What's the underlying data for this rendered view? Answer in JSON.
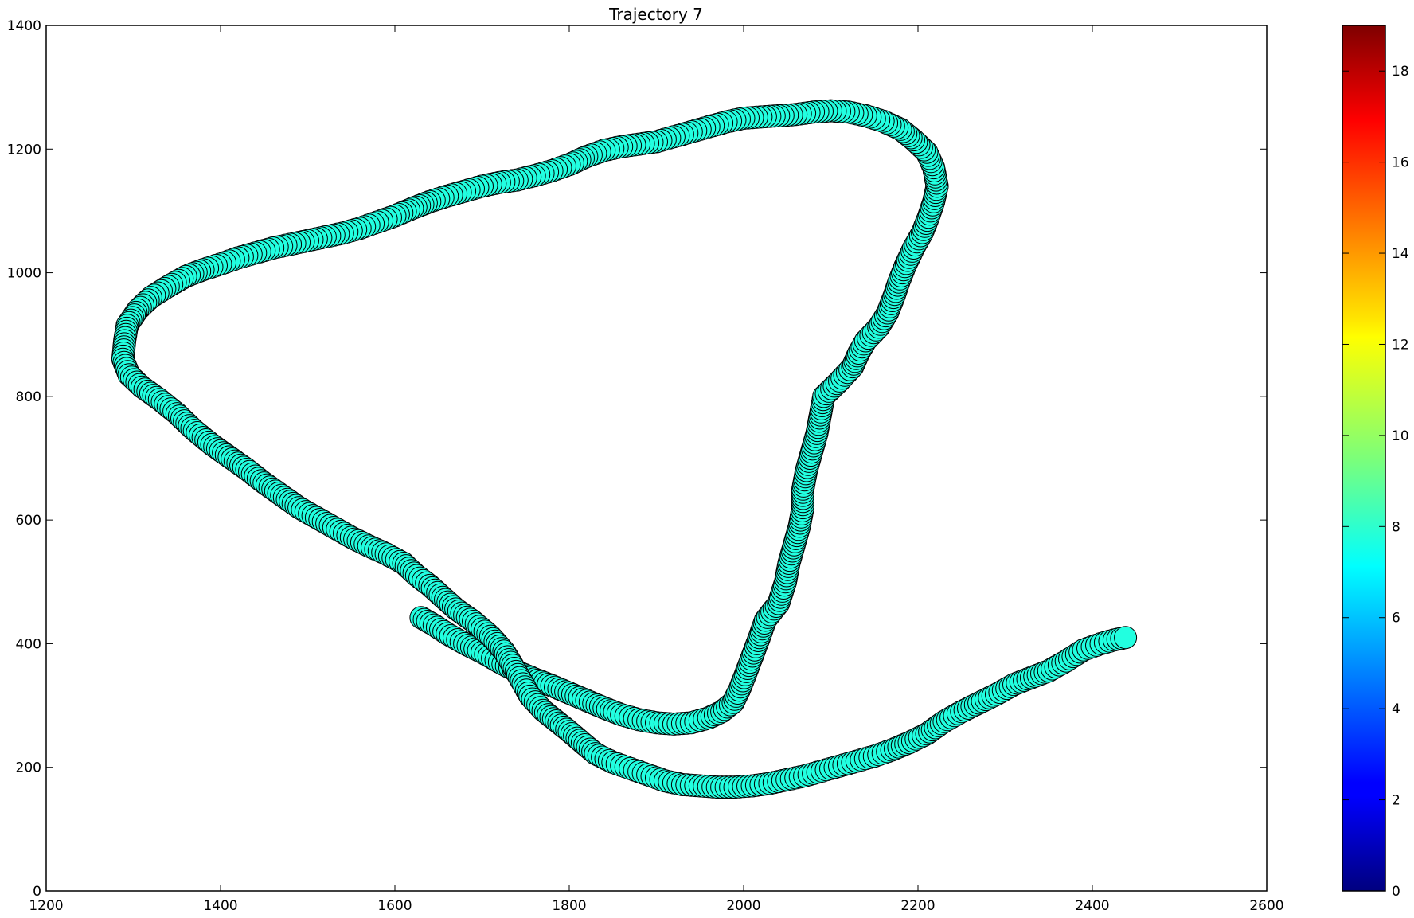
{
  "chart_data": {
    "type": "scatter",
    "title": "Trajectory 7",
    "xlabel": "",
    "ylabel": "",
    "xlim": [
      1200,
      2600
    ],
    "ylim": [
      0,
      1400
    ],
    "x_ticks": [
      1200,
      1400,
      1600,
      1800,
      2000,
      2200,
      2400,
      2600
    ],
    "y_ticks": [
      0,
      200,
      400,
      600,
      800,
      1000,
      1200,
      1400
    ],
    "grid": false,
    "marker_color": "#22ffe0",
    "marker_edge_color": "#000000",
    "colorbar": {
      "colormap": "jet",
      "range": [
        0,
        19
      ],
      "ticks": [
        0,
        2,
        4,
        6,
        8,
        10,
        12,
        14,
        16,
        18
      ]
    },
    "points": [
      [
        1630,
        442
      ],
      [
        1645,
        430
      ],
      [
        1660,
        416
      ],
      [
        1680,
        400
      ],
      [
        1700,
        386
      ],
      [
        1720,
        370
      ],
      [
        1740,
        355
      ],
      [
        1760,
        343
      ],
      [
        1780,
        332
      ],
      [
        1800,
        320
      ],
      [
        1820,
        308
      ],
      [
        1840,
        296
      ],
      [
        1860,
        285
      ],
      [
        1880,
        277
      ],
      [
        1900,
        272
      ],
      [
        1920,
        270
      ],
      [
        1940,
        272
      ],
      [
        1960,
        280
      ],
      [
        1975,
        290
      ],
      [
        1988,
        305
      ],
      [
        1995,
        325
      ],
      [
        2002,
        350
      ],
      [
        2010,
        380
      ],
      [
        2018,
        410
      ],
      [
        2025,
        438
      ],
      [
        2040,
        465
      ],
      [
        2048,
        500
      ],
      [
        2052,
        530
      ],
      [
        2058,
        560
      ],
      [
        2064,
        590
      ],
      [
        2068,
        620
      ],
      [
        2068,
        650
      ],
      [
        2072,
        680
      ],
      [
        2078,
        710
      ],
      [
        2084,
        740
      ],
      [
        2088,
        770
      ],
      [
        2092,
        800
      ],
      [
        2110,
        825
      ],
      [
        2125,
        848
      ],
      [
        2132,
        870
      ],
      [
        2140,
        890
      ],
      [
        2155,
        912
      ],
      [
        2165,
        935
      ],
      [
        2172,
        960
      ],
      [
        2178,
        985
      ],
      [
        2185,
        1010
      ],
      [
        2195,
        1040
      ],
      [
        2205,
        1065
      ],
      [
        2212,
        1090
      ],
      [
        2218,
        1115
      ],
      [
        2222,
        1140
      ],
      [
        2218,
        1170
      ],
      [
        2210,
        1195
      ],
      [
        2195,
        1215
      ],
      [
        2180,
        1232
      ],
      [
        2160,
        1245
      ],
      [
        2140,
        1254
      ],
      [
        2120,
        1260
      ],
      [
        2100,
        1262
      ],
      [
        2080,
        1260
      ],
      [
        2060,
        1256
      ],
      [
        2040,
        1254
      ],
      [
        2020,
        1252
      ],
      [
        2000,
        1250
      ],
      [
        1980,
        1244
      ],
      [
        1960,
        1236
      ],
      [
        1940,
        1228
      ],
      [
        1920,
        1220
      ],
      [
        1900,
        1212
      ],
      [
        1880,
        1208
      ],
      [
        1860,
        1204
      ],
      [
        1840,
        1198
      ],
      [
        1820,
        1188
      ],
      [
        1800,
        1175
      ],
      [
        1780,
        1165
      ],
      [
        1760,
        1157
      ],
      [
        1740,
        1150
      ],
      [
        1720,
        1146
      ],
      [
        1700,
        1140
      ],
      [
        1680,
        1132
      ],
      [
        1660,
        1124
      ],
      [
        1640,
        1115
      ],
      [
        1620,
        1104
      ],
      [
        1600,
        1092
      ],
      [
        1580,
        1082
      ],
      [
        1560,
        1072
      ],
      [
        1540,
        1064
      ],
      [
        1520,
        1058
      ],
      [
        1500,
        1052
      ],
      [
        1480,
        1046
      ],
      [
        1460,
        1040
      ],
      [
        1440,
        1032
      ],
      [
        1420,
        1024
      ],
      [
        1400,
        1014
      ],
      [
        1380,
        1005
      ],
      [
        1360,
        994
      ],
      [
        1340,
        978
      ],
      [
        1320,
        960
      ],
      [
        1305,
        940
      ],
      [
        1293,
        915
      ],
      [
        1290,
        890
      ],
      [
        1288,
        860
      ],
      [
        1295,
        835
      ],
      [
        1310,
        815
      ],
      [
        1330,
        795
      ],
      [
        1350,
        772
      ],
      [
        1370,
        745
      ],
      [
        1390,
        722
      ],
      [
        1410,
        702
      ],
      [
        1430,
        682
      ],
      [
        1450,
        660
      ],
      [
        1470,
        640
      ],
      [
        1490,
        620
      ],
      [
        1510,
        604
      ],
      [
        1530,
        588
      ],
      [
        1550,
        572
      ],
      [
        1570,
        558
      ],
      [
        1590,
        545
      ],
      [
        1610,
        530
      ],
      [
        1625,
        510
      ],
      [
        1640,
        494
      ],
      [
        1655,
        475
      ],
      [
        1670,
        456
      ],
      [
        1690,
        436
      ],
      [
        1710,
        412
      ],
      [
        1725,
        388
      ],
      [
        1735,
        365
      ],
      [
        1745,
        340
      ],
      [
        1755,
        315
      ],
      [
        1770,
        292
      ],
      [
        1785,
        275
      ],
      [
        1800,
        258
      ],
      [
        1815,
        240
      ],
      [
        1830,
        222
      ],
      [
        1850,
        208
      ],
      [
        1870,
        198
      ],
      [
        1890,
        188
      ],
      [
        1910,
        178
      ],
      [
        1930,
        172
      ],
      [
        1950,
        170
      ],
      [
        1970,
        168
      ],
      [
        1990,
        168
      ],
      [
        2010,
        170
      ],
      [
        2030,
        174
      ],
      [
        2050,
        180
      ],
      [
        2070,
        186
      ],
      [
        2090,
        194
      ],
      [
        2110,
        202
      ],
      [
        2130,
        210
      ],
      [
        2150,
        218
      ],
      [
        2170,
        228
      ],
      [
        2190,
        240
      ],
      [
        2210,
        254
      ],
      [
        2230,
        274
      ],
      [
        2250,
        290
      ],
      [
        2270,
        304
      ],
      [
        2290,
        318
      ],
      [
        2310,
        334
      ],
      [
        2330,
        345
      ],
      [
        2350,
        356
      ],
      [
        2370,
        372
      ],
      [
        2390,
        390
      ],
      [
        2410,
        400
      ],
      [
        2425,
        406
      ],
      [
        2438,
        410
      ]
    ]
  }
}
